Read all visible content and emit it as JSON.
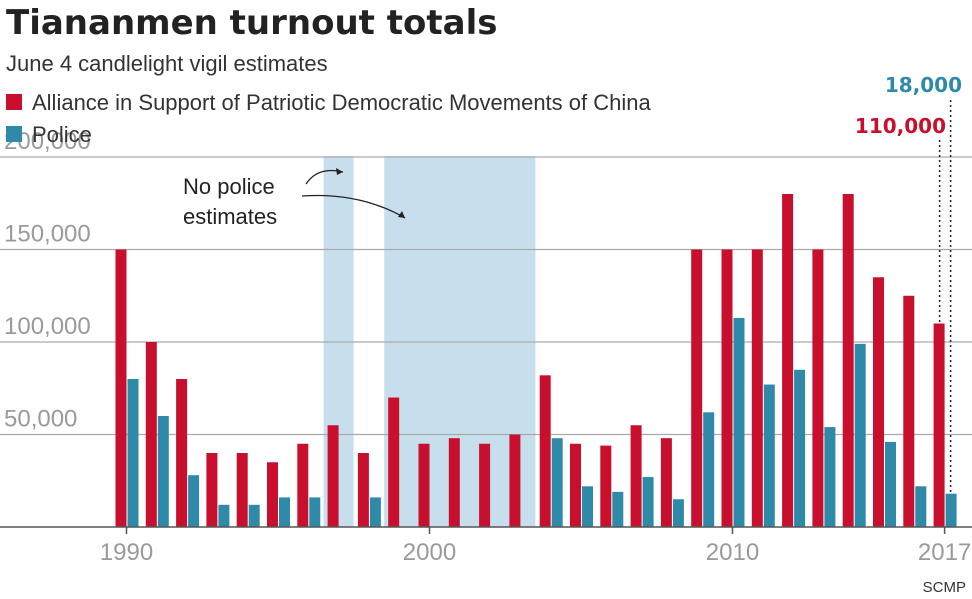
{
  "chart_data": {
    "type": "bar",
    "title": "Tiananmen turnout totals",
    "subtitle": "June 4 candlelight vigil estimates",
    "source": "SCMP",
    "colors": {
      "alliance": "#c8102e",
      "police": "#2e8aa8",
      "shade": "#c7dfec",
      "grid": "#aaaaaa",
      "axis": "#555555"
    },
    "x": [
      1990,
      1991,
      1992,
      1993,
      1994,
      1995,
      1996,
      1997,
      1998,
      1999,
      2000,
      2001,
      2002,
      2003,
      2004,
      2005,
      2006,
      2007,
      2008,
      2009,
      2010,
      2011,
      2012,
      2013,
      2014,
      2015,
      2016,
      2017
    ],
    "series": [
      {
        "name": "Alliance in Support of Patriotic Democratic Movements of China",
        "key": "alliance",
        "values": [
          150000,
          100000,
          80000,
          40000,
          40000,
          35000,
          45000,
          55000,
          40000,
          70000,
          45000,
          48000,
          45000,
          50000,
          82000,
          45000,
          44000,
          55000,
          48000,
          150000,
          150000,
          150000,
          180000,
          150000,
          180000,
          135000,
          125000,
          110000
        ]
      },
      {
        "name": "Police",
        "key": "police",
        "values": [
          80000,
          60000,
          28000,
          12000,
          12000,
          16000,
          16000,
          null,
          16000,
          null,
          null,
          null,
          null,
          null,
          48000,
          22000,
          19000,
          27000,
          15000,
          62000,
          113000,
          77000,
          85000,
          54000,
          99000,
          46000,
          22000,
          18000
        ]
      }
    ],
    "no_police_ranges": [
      [
        1997,
        1997
      ],
      [
        1999,
        2003
      ]
    ],
    "y_ticks": [
      {
        "value": 50000,
        "label": "50,000"
      },
      {
        "value": 100000,
        "label": "100,000"
      },
      {
        "value": 150000,
        "label": "150,000"
      },
      {
        "value": 200000,
        "label": "200,000"
      }
    ],
    "x_ticks": [
      {
        "value": 1990,
        "label": "1990"
      },
      {
        "value": 2000,
        "label": "2000"
      },
      {
        "value": 2010,
        "label": "2010"
      },
      {
        "value": 2017,
        "label": "2017"
      }
    ],
    "ylim": [
      0,
      200000
    ],
    "annotations": {
      "no_police_line1": "No police",
      "no_police_line2": "estimates",
      "label_2017_police": "18,000",
      "label_2017_alliance": "110,000"
    }
  }
}
